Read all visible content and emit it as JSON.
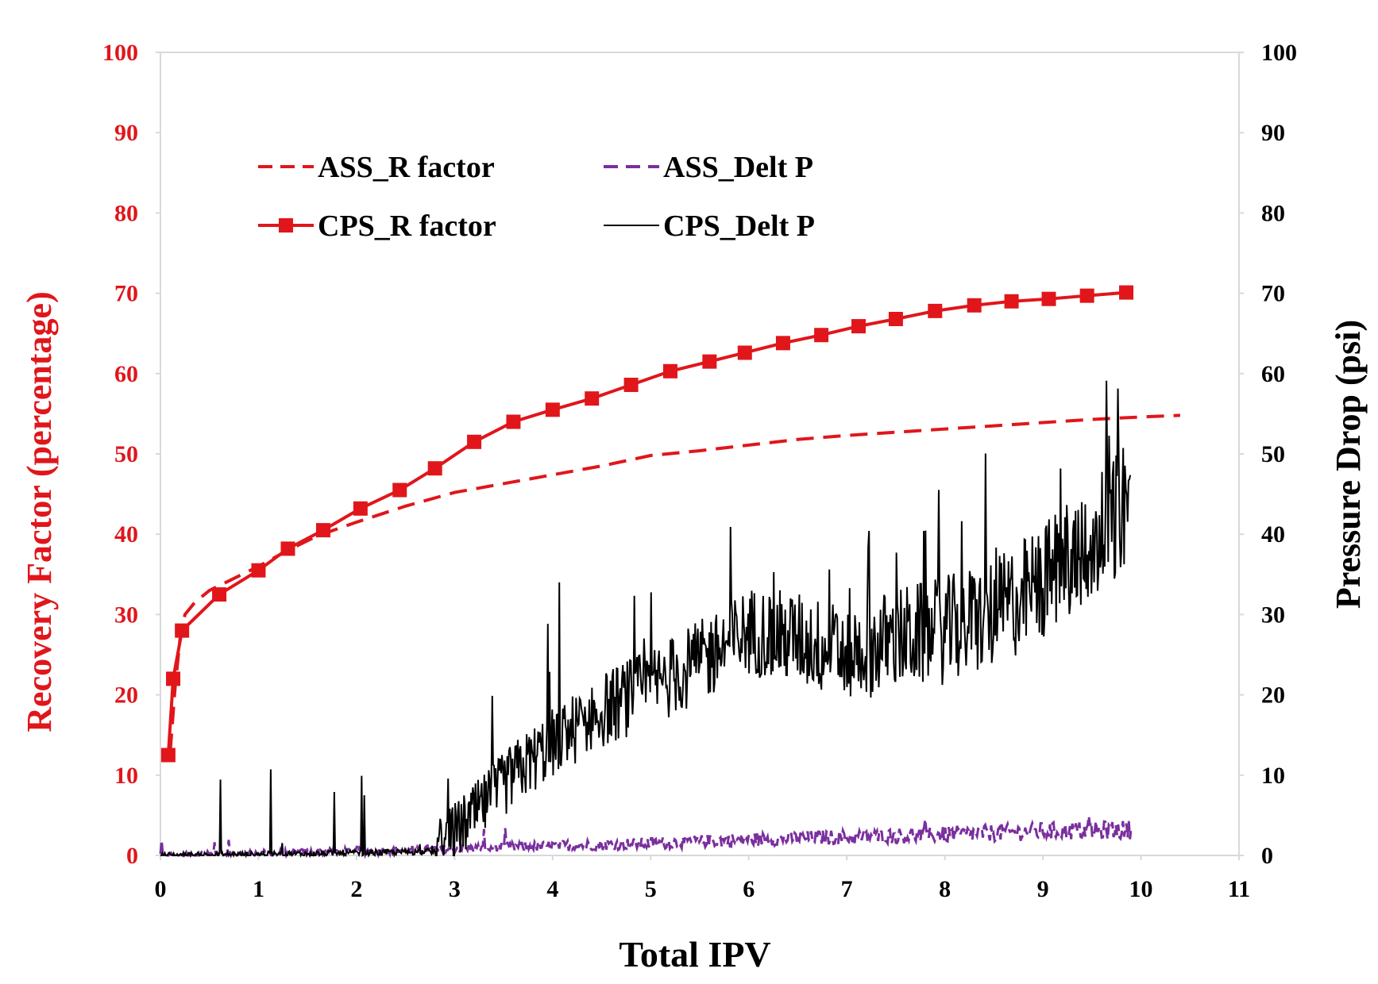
{
  "chart_data": {
    "type": "line",
    "xlabel": "Total IPV",
    "ylabel": "Recovery Factor (percentage)",
    "y2label": "Pressure Drop (psi)",
    "xlim": [
      0,
      11
    ],
    "ylim": [
      0,
      100
    ],
    "y2lim": [
      0,
      100
    ],
    "x_ticks": [
      "0",
      "1",
      "2",
      "3",
      "4",
      "5",
      "6",
      "7",
      "8",
      "9",
      "10",
      "11"
    ],
    "y_ticks": [
      "0",
      "10",
      "20",
      "30",
      "40",
      "50",
      "60",
      "70",
      "80",
      "90",
      "100"
    ],
    "y2_ticks": [
      "0",
      "10",
      "20",
      "30",
      "40",
      "50",
      "60",
      "70",
      "80",
      "90",
      "100"
    ],
    "grid": false,
    "legend_position": "top-left",
    "colors": {
      "red": "#e0161b",
      "purple": "#7a2f9e",
      "black": "#000000"
    },
    "series": [
      {
        "name": "ASS_R factor",
        "axis": "left",
        "style": "dashed",
        "color": "#e0161b",
        "x": [
          0.1,
          0.15,
          0.2,
          0.25,
          0.35,
          0.5,
          0.7,
          1.0,
          1.3,
          1.6,
          2.0,
          2.5,
          3.0,
          3.5,
          4.0,
          4.5,
          5.0,
          5.5,
          6.0,
          6.5,
          7.0,
          7.5,
          8.0,
          8.5,
          9.0,
          9.5,
          10.0,
          10.4
        ],
        "y": [
          13,
          21,
          27,
          30,
          31.5,
          33,
          34.2,
          36,
          38,
          39.8,
          41.5,
          43.5,
          45.2,
          46.3,
          47.4,
          48.5,
          49.8,
          50.4,
          51.1,
          51.8,
          52.3,
          52.7,
          53.1,
          53.5,
          53.9,
          54.3,
          54.6,
          54.8
        ]
      },
      {
        "name": "CPS_R factor",
        "axis": "left",
        "style": "solid-square",
        "color": "#e0161b",
        "x": [
          0.08,
          0.13,
          0.22,
          0.6,
          1.0,
          1.3,
          1.66,
          2.04,
          2.44,
          2.8,
          3.2,
          3.6,
          4.0,
          4.4,
          4.8,
          5.2,
          5.6,
          5.96,
          6.35,
          6.74,
          7.12,
          7.5,
          7.9,
          8.3,
          8.68,
          9.06,
          9.45,
          9.85
        ],
        "y": [
          12.5,
          22,
          28,
          32.5,
          35.5,
          38.2,
          40.5,
          43.2,
          45.5,
          48.2,
          51.5,
          54,
          55.5,
          56.9,
          58.6,
          60.3,
          61.5,
          62.6,
          63.8,
          64.8,
          65.9,
          66.8,
          67.8,
          68.5,
          69,
          69.3,
          69.7,
          70.1
        ]
      },
      {
        "name": "ASS_Delt P",
        "axis": "right",
        "style": "dashed-noisy",
        "color": "#7a2f9e",
        "x": [
          0,
          1,
          2,
          3,
          4,
          5,
          6,
          7,
          8,
          9,
          9.9
        ],
        "y": [
          0.1,
          0.3,
          0.5,
          0.8,
          1.2,
          1.5,
          2,
          2.3,
          2.6,
          3,
          3.2
        ]
      },
      {
        "name": "CPS_Delt P",
        "axis": "right",
        "style": "solid-noisy",
        "color": "#000000",
        "x": [
          0,
          1,
          2,
          2.8,
          3.2,
          3.6,
          4.0,
          4.5,
          5.0,
          5.5,
          6.0,
          6.5,
          7.0,
          7.5,
          8.0,
          8.5,
          9.0,
          9.3,
          9.6,
          9.9
        ],
        "y": [
          0,
          0.1,
          0.3,
          0.5,
          5,
          10,
          14,
          18,
          21,
          24,
          28,
          27,
          25,
          27,
          28,
          30,
          34,
          38,
          40,
          45
        ]
      }
    ]
  }
}
